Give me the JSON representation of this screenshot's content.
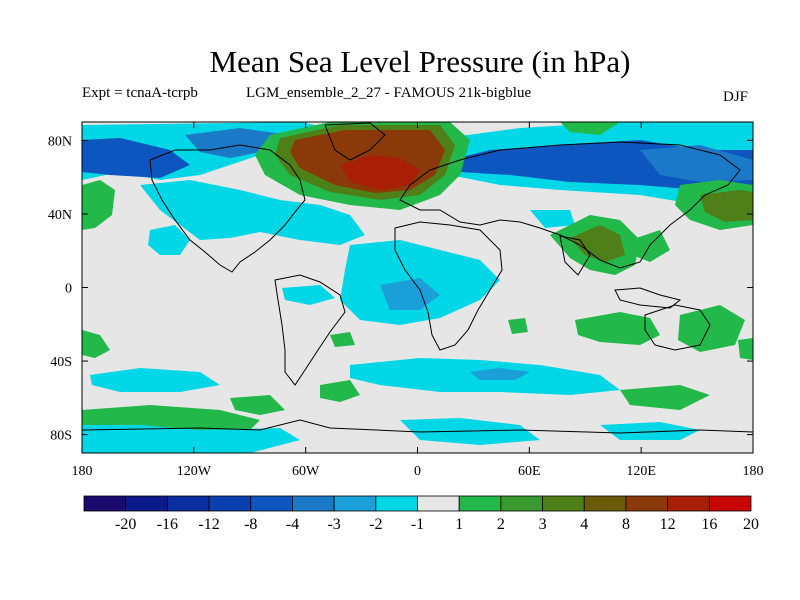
{
  "title": "Mean Sea Level Pressure (in hPa)",
  "subtitle_left": "Expt = tcnaA-tcrpb",
  "subtitle_center": "LGM_ensemble_2_27 - FAMOUS 21k-bigblue",
  "season": "DJF",
  "x_ticks": [
    "180",
    "120W",
    "60W",
    "0",
    "60E",
    "120E",
    "180"
  ],
  "y_ticks": [
    "80N",
    "40N",
    "0",
    "40S",
    "80S"
  ],
  "colorbar": {
    "labels": [
      "-20",
      "-16",
      "-12",
      "-8",
      "-4",
      "-3",
      "-2",
      "-1",
      "1",
      "2",
      "3",
      "4",
      "8",
      "12",
      "16",
      "20"
    ],
    "colors": [
      "#1a0a6e",
      "#0d1a8a",
      "#0a2da0",
      "#0a3fb0",
      "#0d55bf",
      "#1a7ac8",
      "#1a9fd9",
      "#00d7e6",
      "#e6e6e6",
      "#23b84a",
      "#3a9a30",
      "#4f7f18",
      "#6b5a0a",
      "#8a3a08",
      "#a81f05",
      "#c80505"
    ]
  },
  "fill_colors": {
    "neutral": "#e6e6e6",
    "cyan": "#00d7e6",
    "light_blue": "#1a9fd9",
    "blue": "#1a7ac8",
    "deep_blue": "#0d55bf",
    "green": "#23b84a",
    "dark_green": "#3a9a30",
    "olive": "#4f7f18",
    "brown": "#6b5a0a",
    "rust": "#8a3a08",
    "red": "#a81f05"
  }
}
